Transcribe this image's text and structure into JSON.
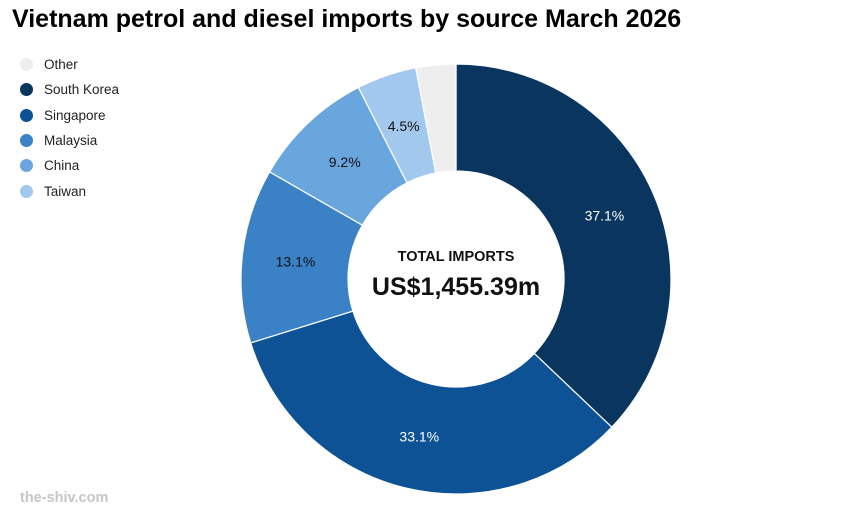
{
  "chart_data": {
    "type": "pie",
    "title": "Vietnam petrol and diesel imports by source March 2026",
    "legend_position": "top-left",
    "center_title": "TOTAL IMPORTS",
    "center_value": "US$1,455.39m",
    "slices": [
      {
        "name": "South Korea",
        "value": 37.1,
        "label": "37.1%",
        "color": "#0a355f",
        "label_color": "#ffffff"
      },
      {
        "name": "Singapore",
        "value": 33.1,
        "label": "33.1%",
        "color": "#0d5295",
        "label_color": "#ffffff"
      },
      {
        "name": "Malaysia",
        "value": 13.1,
        "label": "13.1%",
        "color": "#3b81c6",
        "label_color": "#111111"
      },
      {
        "name": "China",
        "value": 9.2,
        "label": "9.2%",
        "color": "#6aa6de",
        "label_color": "#111111"
      },
      {
        "name": "Taiwan",
        "value": 4.5,
        "label": "4.5%",
        "color": "#a3c8ee",
        "label_color": "#111111"
      },
      {
        "name": "Other",
        "value": 3.0,
        "label": "",
        "color": "#eeeeee",
        "label_color": "#111111"
      }
    ],
    "legend_order": [
      "Other",
      "South Korea",
      "Singapore",
      "Malaysia",
      "China",
      "Taiwan"
    ]
  },
  "footer": {
    "source": "the-shiv.com"
  }
}
